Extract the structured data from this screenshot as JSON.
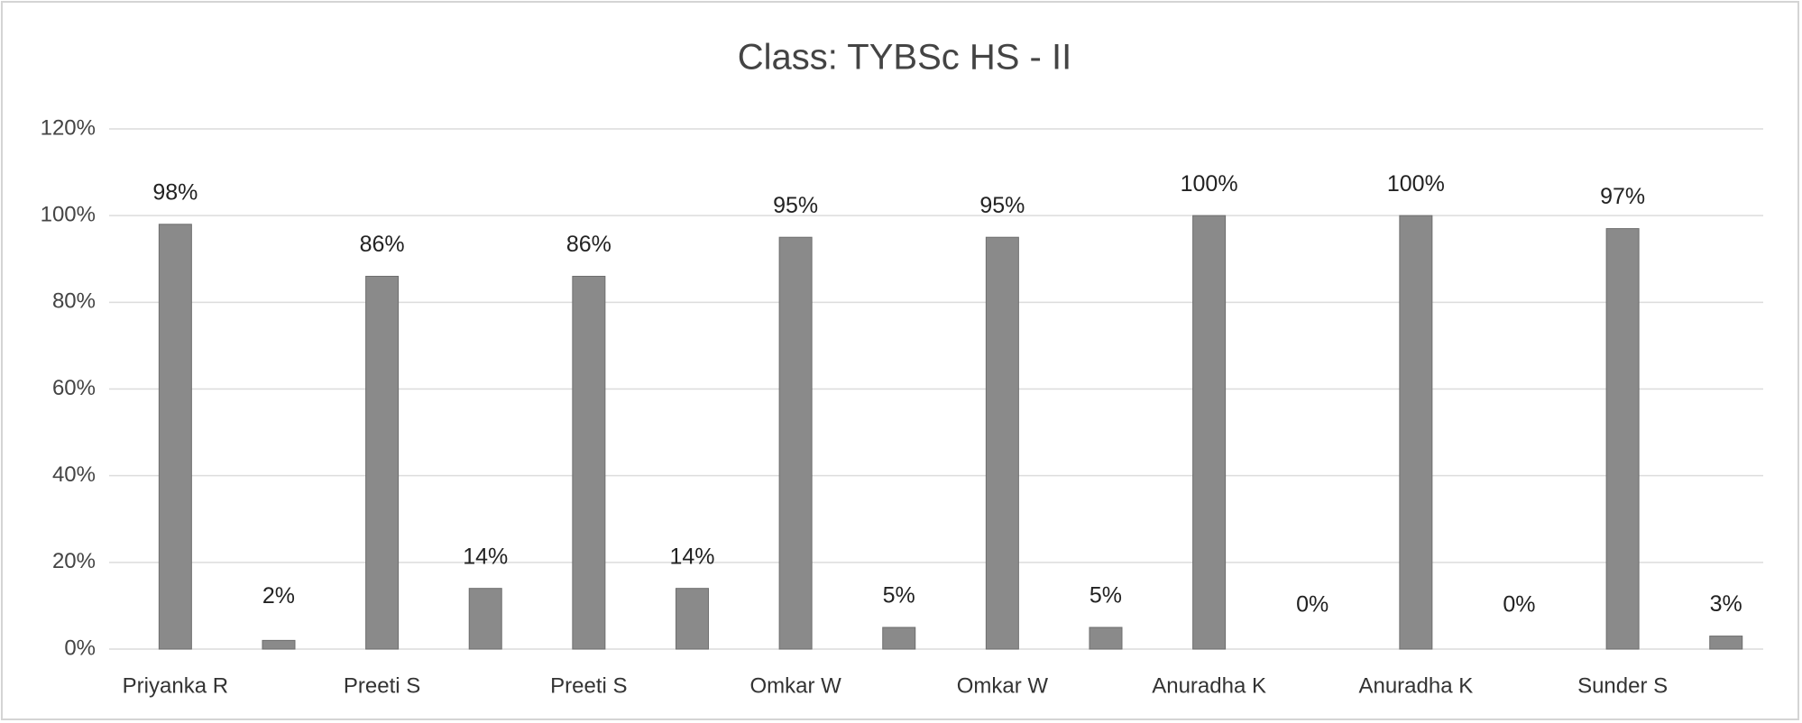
{
  "chart_data": {
    "type": "bar",
    "title": "Class: TYBSc HS - II",
    "categories": [
      "Priyanka R",
      "Preeti S",
      "Preeti S",
      "Omkar W",
      "Omkar W",
      "Anuradha K",
      "Anuradha K",
      "Sunder S"
    ],
    "series": [
      {
        "color": "#8a8a8a",
        "values": [
          98,
          86,
          86,
          95,
          95,
          100,
          100,
          97
        ],
        "value_labels": [
          "98%",
          "86%",
          "86%",
          "95%",
          "95%",
          "100%",
          "100%",
          "97%"
        ]
      },
      {
        "color": "#8a8a8a",
        "values": [
          2,
          14,
          14,
          5,
          5,
          0,
          0,
          3
        ],
        "value_labels": [
          "2%",
          "14%",
          "14%",
          "5%",
          "5%",
          "0%",
          "0%",
          "3%"
        ]
      }
    ],
    "ylim": [
      0,
      120
    ],
    "yticks": [
      {
        "value": 0,
        "label": "0%"
      },
      {
        "value": 20,
        "label": "20%"
      },
      {
        "value": 40,
        "label": "40%"
      },
      {
        "value": 60,
        "label": "60%"
      },
      {
        "value": 80,
        "label": "80%"
      },
      {
        "value": 100,
        "label": "100%"
      },
      {
        "value": 120,
        "label": "120%"
      }
    ],
    "grid": true
  }
}
